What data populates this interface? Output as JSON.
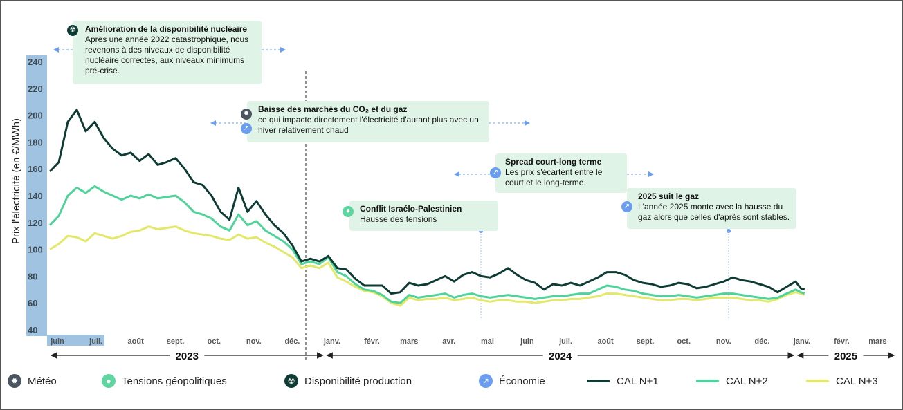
{
  "chart_data": {
    "type": "line",
    "ylabel": "Prix l'électricité (en €/MWh)",
    "ylim": [
      40,
      240
    ],
    "y_ticks": [
      "240",
      "220",
      "200",
      "180",
      "160",
      "140",
      "120",
      "100",
      "80",
      "60",
      "40"
    ],
    "x_months": [
      "juin",
      "juil.",
      "août",
      "sept.",
      "oct.",
      "nov.",
      "déc.",
      "janv.",
      "févr.",
      "mars",
      "avr.",
      "mai",
      "juin",
      "juil.",
      "août",
      "sept.",
      "oct.",
      "nov.",
      "déc.",
      "janv.",
      "févr.",
      "mars"
    ],
    "years": [
      "2023",
      "2024",
      "2025"
    ],
    "x_start": "2023-06-01",
    "series": [
      {
        "name": "CAL N+1",
        "color": "#0e3b33",
        "points": [
          [
            "2023-06-01",
            158
          ],
          [
            "2023-06-08",
            165
          ],
          [
            "2023-06-15",
            195
          ],
          [
            "2023-06-22",
            204
          ],
          [
            "2023-06-29",
            188
          ],
          [
            "2023-07-06",
            195
          ],
          [
            "2023-07-13",
            183
          ],
          [
            "2023-07-20",
            175
          ],
          [
            "2023-07-27",
            170
          ],
          [
            "2023-08-03",
            172
          ],
          [
            "2023-08-10",
            166
          ],
          [
            "2023-08-17",
            171
          ],
          [
            "2023-08-24",
            163
          ],
          [
            "2023-08-31",
            165
          ],
          [
            "2023-09-07",
            168
          ],
          [
            "2023-09-14",
            160
          ],
          [
            "2023-09-21",
            150
          ],
          [
            "2023-09-28",
            148
          ],
          [
            "2023-10-05",
            140
          ],
          [
            "2023-10-12",
            128
          ],
          [
            "2023-10-19",
            122
          ],
          [
            "2023-10-26",
            146
          ],
          [
            "2023-11-02",
            128
          ],
          [
            "2023-11-09",
            136
          ],
          [
            "2023-11-16",
            126
          ],
          [
            "2023-11-23",
            118
          ],
          [
            "2023-11-30",
            112
          ],
          [
            "2023-12-07",
            103
          ],
          [
            "2023-12-14",
            91
          ],
          [
            "2023-12-21",
            93
          ],
          [
            "2023-12-28",
            91
          ],
          [
            "2024-01-04",
            95
          ],
          [
            "2024-01-11",
            86
          ],
          [
            "2024-01-18",
            85
          ],
          [
            "2024-01-25",
            78
          ],
          [
            "2024-02-01",
            73
          ],
          [
            "2024-02-08",
            73
          ],
          [
            "2024-02-15",
            73
          ],
          [
            "2024-02-22",
            67
          ],
          [
            "2024-02-29",
            68
          ],
          [
            "2024-03-07",
            75
          ],
          [
            "2024-03-14",
            73
          ],
          [
            "2024-03-21",
            74
          ],
          [
            "2024-03-28",
            77
          ],
          [
            "2024-04-04",
            80
          ],
          [
            "2024-04-11",
            76
          ],
          [
            "2024-04-18",
            81
          ],
          [
            "2024-04-25",
            83
          ],
          [
            "2024-05-02",
            80
          ],
          [
            "2024-05-09",
            79
          ],
          [
            "2024-05-16",
            82
          ],
          [
            "2024-05-23",
            86
          ],
          [
            "2024-05-30",
            81
          ],
          [
            "2024-06-06",
            77
          ],
          [
            "2024-06-13",
            75
          ],
          [
            "2024-06-20",
            70
          ],
          [
            "2024-06-27",
            74
          ],
          [
            "2024-07-04",
            73
          ],
          [
            "2024-07-11",
            75
          ],
          [
            "2024-07-18",
            73
          ],
          [
            "2024-07-25",
            76
          ],
          [
            "2024-08-01",
            79
          ],
          [
            "2024-08-08",
            83
          ],
          [
            "2024-08-15",
            83
          ],
          [
            "2024-08-22",
            81
          ],
          [
            "2024-08-29",
            77
          ],
          [
            "2024-09-05",
            75
          ],
          [
            "2024-09-12",
            74
          ],
          [
            "2024-09-19",
            72
          ],
          [
            "2024-09-26",
            73
          ],
          [
            "2024-10-03",
            75
          ],
          [
            "2024-10-10",
            74
          ],
          [
            "2024-10-17",
            71
          ],
          [
            "2024-10-24",
            72
          ],
          [
            "2024-10-31",
            74
          ],
          [
            "2024-11-07",
            76
          ],
          [
            "2024-11-14",
            79
          ],
          [
            "2024-11-21",
            77
          ],
          [
            "2024-11-28",
            76
          ],
          [
            "2024-12-05",
            74
          ],
          [
            "2024-12-12",
            72
          ],
          [
            "2024-12-19",
            68
          ],
          [
            "2024-12-26",
            72
          ],
          [
            "2025-01-02",
            76
          ],
          [
            "2025-01-06",
            71
          ],
          [
            "2025-01-09",
            70
          ]
        ]
      },
      {
        "name": "CAL N+2",
        "color": "#4fd39a",
        "points": [
          [
            "2023-06-01",
            118
          ],
          [
            "2023-06-08",
            125
          ],
          [
            "2023-06-15",
            140
          ],
          [
            "2023-06-22",
            146
          ],
          [
            "2023-06-29",
            142
          ],
          [
            "2023-07-06",
            147
          ],
          [
            "2023-07-13",
            143
          ],
          [
            "2023-07-20",
            140
          ],
          [
            "2023-07-27",
            137
          ],
          [
            "2023-08-03",
            140
          ],
          [
            "2023-08-10",
            138
          ],
          [
            "2023-08-17",
            141
          ],
          [
            "2023-08-24",
            138
          ],
          [
            "2023-08-31",
            139
          ],
          [
            "2023-09-07",
            140
          ],
          [
            "2023-09-14",
            135
          ],
          [
            "2023-09-21",
            128
          ],
          [
            "2023-09-28",
            126
          ],
          [
            "2023-10-05",
            123
          ],
          [
            "2023-10-12",
            117
          ],
          [
            "2023-10-19",
            114
          ],
          [
            "2023-10-26",
            126
          ],
          [
            "2023-11-02",
            118
          ],
          [
            "2023-11-09",
            121
          ],
          [
            "2023-11-16",
            114
          ],
          [
            "2023-11-23",
            110
          ],
          [
            "2023-11-30",
            106
          ],
          [
            "2023-12-07",
            100
          ],
          [
            "2023-12-14",
            89
          ],
          [
            "2023-12-21",
            91
          ],
          [
            "2023-12-28",
            89
          ],
          [
            "2024-01-04",
            94
          ],
          [
            "2024-01-11",
            83
          ],
          [
            "2024-01-18",
            80
          ],
          [
            "2024-01-25",
            74
          ],
          [
            "2024-02-01",
            70
          ],
          [
            "2024-02-08",
            69
          ],
          [
            "2024-02-15",
            66
          ],
          [
            "2024-02-22",
            61
          ],
          [
            "2024-02-29",
            60
          ],
          [
            "2024-03-07",
            66
          ],
          [
            "2024-03-14",
            64
          ],
          [
            "2024-03-21",
            65
          ],
          [
            "2024-03-28",
            66
          ],
          [
            "2024-04-04",
            67
          ],
          [
            "2024-04-11",
            64
          ],
          [
            "2024-04-18",
            66
          ],
          [
            "2024-04-25",
            67
          ],
          [
            "2024-05-02",
            65
          ],
          [
            "2024-05-09",
            64
          ],
          [
            "2024-05-16",
            65
          ],
          [
            "2024-05-23",
            66
          ],
          [
            "2024-05-30",
            65
          ],
          [
            "2024-06-06",
            64
          ],
          [
            "2024-06-13",
            63
          ],
          [
            "2024-06-20",
            64
          ],
          [
            "2024-06-27",
            65
          ],
          [
            "2024-07-04",
            65
          ],
          [
            "2024-07-11",
            66
          ],
          [
            "2024-07-18",
            67
          ],
          [
            "2024-07-25",
            67
          ],
          [
            "2024-08-01",
            70
          ],
          [
            "2024-08-08",
            73
          ],
          [
            "2024-08-15",
            72
          ],
          [
            "2024-08-22",
            70
          ],
          [
            "2024-08-29",
            69
          ],
          [
            "2024-09-05",
            67
          ],
          [
            "2024-09-12",
            66
          ],
          [
            "2024-09-19",
            65
          ],
          [
            "2024-09-26",
            65
          ],
          [
            "2024-10-03",
            66
          ],
          [
            "2024-10-10",
            65
          ],
          [
            "2024-10-17",
            64
          ],
          [
            "2024-10-24",
            65
          ],
          [
            "2024-10-31",
            66
          ],
          [
            "2024-11-07",
            67
          ],
          [
            "2024-11-14",
            67
          ],
          [
            "2024-11-21",
            66
          ],
          [
            "2024-11-28",
            65
          ],
          [
            "2024-12-05",
            64
          ],
          [
            "2024-12-12",
            63
          ],
          [
            "2024-12-19",
            64
          ],
          [
            "2024-12-26",
            67
          ],
          [
            "2025-01-02",
            70
          ],
          [
            "2025-01-06",
            68
          ],
          [
            "2025-01-09",
            67
          ]
        ]
      },
      {
        "name": "CAL N+3",
        "color": "#e3e86a",
        "points": [
          [
            "2023-06-01",
            100
          ],
          [
            "2023-06-08",
            104
          ],
          [
            "2023-06-15",
            110
          ],
          [
            "2023-06-22",
            109
          ],
          [
            "2023-06-29",
            106
          ],
          [
            "2023-07-06",
            112
          ],
          [
            "2023-07-13",
            110
          ],
          [
            "2023-07-20",
            108
          ],
          [
            "2023-07-27",
            110
          ],
          [
            "2023-08-03",
            113
          ],
          [
            "2023-08-10",
            114
          ],
          [
            "2023-08-17",
            117
          ],
          [
            "2023-08-24",
            115
          ],
          [
            "2023-08-31",
            116
          ],
          [
            "2023-09-07",
            117
          ],
          [
            "2023-09-14",
            114
          ],
          [
            "2023-09-21",
            112
          ],
          [
            "2023-09-28",
            111
          ],
          [
            "2023-10-05",
            110
          ],
          [
            "2023-10-12",
            108
          ],
          [
            "2023-10-19",
            107
          ],
          [
            "2023-10-26",
            111
          ],
          [
            "2023-11-02",
            108
          ],
          [
            "2023-11-09",
            109
          ],
          [
            "2023-11-16",
            105
          ],
          [
            "2023-11-23",
            102
          ],
          [
            "2023-11-30",
            98
          ],
          [
            "2023-12-07",
            94
          ],
          [
            "2023-12-14",
            86
          ],
          [
            "2023-12-21",
            88
          ],
          [
            "2023-12-28",
            86
          ],
          [
            "2024-01-04",
            90
          ],
          [
            "2024-01-11",
            79
          ],
          [
            "2024-01-18",
            76
          ],
          [
            "2024-01-25",
            72
          ],
          [
            "2024-02-01",
            69
          ],
          [
            "2024-02-08",
            68
          ],
          [
            "2024-02-15",
            65
          ],
          [
            "2024-02-22",
            60
          ],
          [
            "2024-02-29",
            58
          ],
          [
            "2024-03-07",
            64
          ],
          [
            "2024-03-14",
            62
          ],
          [
            "2024-03-21",
            63
          ],
          [
            "2024-03-28",
            63
          ],
          [
            "2024-04-04",
            64
          ],
          [
            "2024-04-11",
            62
          ],
          [
            "2024-04-18",
            63
          ],
          [
            "2024-04-25",
            64
          ],
          [
            "2024-05-02",
            62
          ],
          [
            "2024-05-09",
            61
          ],
          [
            "2024-05-16",
            62
          ],
          [
            "2024-05-23",
            62
          ],
          [
            "2024-05-30",
            61
          ],
          [
            "2024-06-06",
            61
          ],
          [
            "2024-06-13",
            60
          ],
          [
            "2024-06-20",
            61
          ],
          [
            "2024-06-27",
            62
          ],
          [
            "2024-07-04",
            62
          ],
          [
            "2024-07-11",
            63
          ],
          [
            "2024-07-18",
            63
          ],
          [
            "2024-07-25",
            64
          ],
          [
            "2024-08-01",
            65
          ],
          [
            "2024-08-08",
            67
          ],
          [
            "2024-08-15",
            67
          ],
          [
            "2024-08-22",
            66
          ],
          [
            "2024-08-29",
            65
          ],
          [
            "2024-09-05",
            64
          ],
          [
            "2024-09-12",
            63
          ],
          [
            "2024-09-19",
            62
          ],
          [
            "2024-09-26",
            62
          ],
          [
            "2024-10-03",
            63
          ],
          [
            "2024-10-10",
            63
          ],
          [
            "2024-10-17",
            62
          ],
          [
            "2024-10-24",
            63
          ],
          [
            "2024-10-31",
            64
          ],
          [
            "2024-11-07",
            64
          ],
          [
            "2024-11-14",
            64
          ],
          [
            "2024-11-21",
            63
          ],
          [
            "2024-11-28",
            62
          ],
          [
            "2024-12-05",
            62
          ],
          [
            "2024-12-12",
            61
          ],
          [
            "2024-12-19",
            63
          ],
          [
            "2024-12-26",
            66
          ],
          [
            "2025-01-02",
            68
          ],
          [
            "2025-01-06",
            67
          ],
          [
            "2025-01-09",
            66
          ]
        ]
      }
    ],
    "grid": false,
    "legend_position": "bottom"
  },
  "annotations": {
    "nuclear": {
      "title": "Amélioration de la disponibilité nucléaire",
      "text": "Après une année 2022 catastrophique, nous revenons à des niveaux de disponibilité nucléaire correctes, aux niveaux minimums pré-crise.",
      "icon": "radiation-icon"
    },
    "co2": {
      "title": "Baisse des marchés du CO₂ et du gaz",
      "text": "ce qui impacte directement l'électricité d'autant plus avec un hiver relativement chaud",
      "icons": [
        "sun-icon",
        "trend-icon"
      ]
    },
    "conflict": {
      "title": "Conflit Israélo-Palestinien",
      "text": "Hausse des tensions",
      "icon": "drop-icon"
    },
    "spread": {
      "title": "Spread court-long terme",
      "text": "Les prix s'écartent entre le court et le long-terme.",
      "icon": "trend-icon"
    },
    "gas2025": {
      "title": "2025 suit le gaz",
      "text": "L'année 2025 monte avec la hausse du gaz alors que celles d'après sont stables.",
      "icon": "trend-icon"
    }
  },
  "legend": {
    "meteo": "Météo",
    "tensions": "Tensions géopolitiques",
    "production": "Disponibilité production",
    "economie": "Économie",
    "n1": "CAL N+1",
    "n2": "CAL N+2",
    "n3": "CAL N+3"
  },
  "colors": {
    "n1": "#0e3b33",
    "n2": "#4fd39a",
    "n3": "#e3e86a",
    "callout_bg": "#dff4e6",
    "arrow_blue": "#6a9df0",
    "axis_highlight": "#9fc3e0"
  }
}
